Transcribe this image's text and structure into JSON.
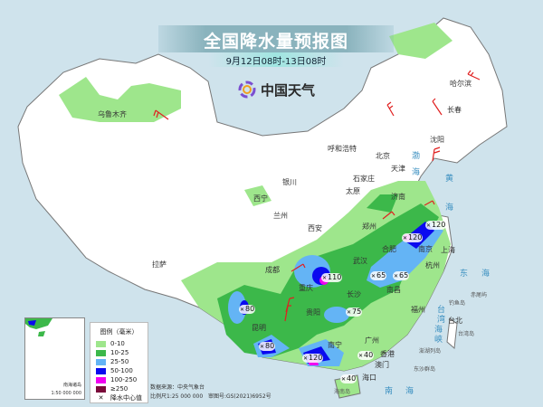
{
  "header": {
    "title": "全国降水量预报图",
    "subtitle": "9月12日08时-13日08时",
    "logo_text": "中国天气"
  },
  "cities": [
    {
      "name": "乌鲁木齐"
    },
    {
      "name": "哈尔滨"
    },
    {
      "name": "长春"
    },
    {
      "name": "沈阳"
    },
    {
      "name": "呼和浩特"
    },
    {
      "name": "北京"
    },
    {
      "name": "天津"
    },
    {
      "name": "石家庄"
    },
    {
      "name": "太原"
    },
    {
      "name": "济南"
    },
    {
      "name": "银川"
    },
    {
      "name": "西宁"
    },
    {
      "name": "兰州"
    },
    {
      "name": "西安"
    },
    {
      "name": "郑州"
    },
    {
      "name": "合肥"
    },
    {
      "name": "南京"
    },
    {
      "name": "上海"
    },
    {
      "name": "杭州"
    },
    {
      "name": "武汉"
    },
    {
      "name": "南昌"
    },
    {
      "name": "长沙"
    },
    {
      "name": "成都"
    },
    {
      "name": "重庆"
    },
    {
      "name": "贵阳"
    },
    {
      "name": "昆明"
    },
    {
      "name": "拉萨"
    },
    {
      "name": "福州"
    },
    {
      "name": "台北"
    },
    {
      "name": "广州"
    },
    {
      "name": "南宁"
    },
    {
      "name": "香港"
    },
    {
      "name": "澳门"
    },
    {
      "name": "海口"
    }
  ],
  "seas": [
    "渤",
    "海",
    "黄",
    "海",
    "东",
    "海",
    "南",
    "海",
    "台",
    "湾",
    "海",
    "峡"
  ],
  "islands": [
    "台湾岛",
    "海南岛",
    "钓鱼岛",
    "赤尾屿",
    "澎湖列岛",
    "东沙群岛"
  ],
  "rain_centers": [
    "120",
    "120",
    "110",
    "65",
    "65",
    "75",
    "80",
    "80",
    "120",
    "40",
    "40"
  ],
  "inset": {
    "name": "南海诸岛",
    "scale": "1:50 000 000"
  },
  "legend": {
    "title": "图例（毫米）",
    "items": [
      {
        "label": "0-10",
        "color": "#9ee68c"
      },
      {
        "label": "10-25",
        "color": "#3cb84a"
      },
      {
        "label": "25-50",
        "color": "#64b4f5"
      },
      {
        "label": "50-100",
        "color": "#0a0aef"
      },
      {
        "label": "100-250",
        "color": "#f000f0"
      },
      {
        "label": "≥250",
        "color": "#7a0a3a"
      }
    ],
    "center_label": "降水中心值"
  },
  "source": {
    "data_source": "数据来源：中央气象台",
    "scale": "比例尺1:25 000 000",
    "approval": "审图号:GS(2021)6952号"
  }
}
